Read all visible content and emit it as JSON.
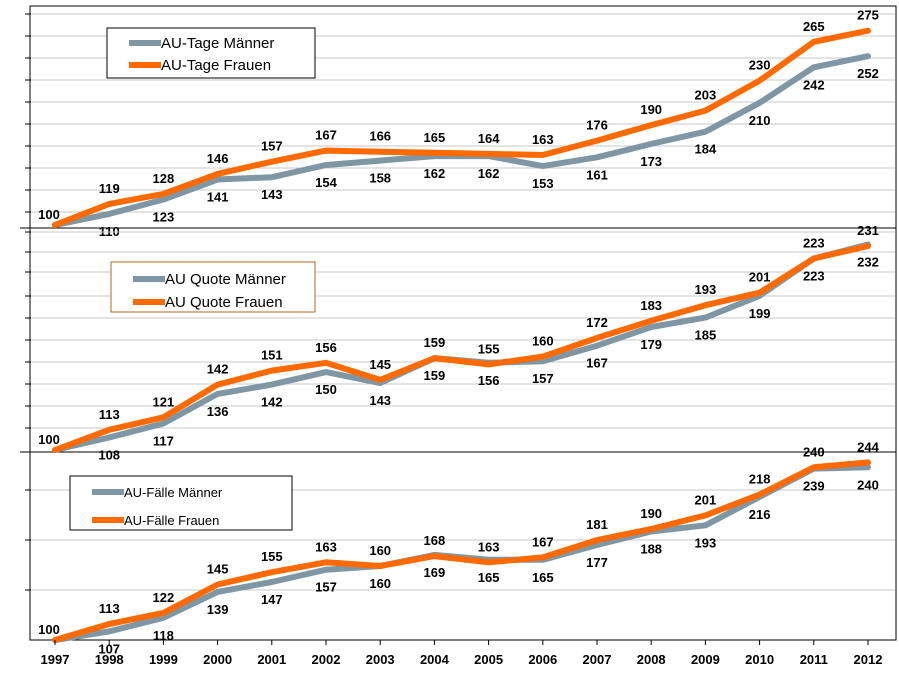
{
  "chart_data": {
    "type": "line",
    "categories": [
      "1997",
      "1998",
      "1999",
      "2000",
      "2001",
      "2002",
      "2003",
      "2004",
      "2005",
      "2006",
      "2007",
      "2008",
      "2009",
      "2010",
      "2011",
      "2012"
    ],
    "colors": {
      "men": "#7f97a5",
      "women": "#ff6a00"
    },
    "grid": true,
    "panels": [
      {
        "ylim": [
          100,
          290
        ],
        "legend_placement": "top-left",
        "series": [
          {
            "name": "AU-Tage Männer",
            "color_key": "men",
            "values": [
              100,
              110,
              123,
              141,
              143,
              154,
              158,
              162,
              162,
              153,
              161,
              173,
              184,
              210,
              242,
              252
            ],
            "labels": [
              "",
              "110",
              "123",
              "141",
              "143",
              "154",
              "158",
              "162",
              "162",
              "153",
              "161",
              "173",
              "184",
              "210",
              "242",
              "252"
            ]
          },
          {
            "name": "AU-Tage Frauen",
            "color_key": "women",
            "values": [
              100,
              119,
              128,
              146,
              157,
              167,
              166,
              165,
              164,
              163,
              176,
              190,
              203,
              230,
              265,
              275
            ],
            "labels": [
              "100",
              "119",
              "128",
              "146",
              "157",
              "167",
              "166",
              "165",
              "164",
              "163",
              "176",
              "190",
              "203",
              "230",
              "265",
              "275"
            ]
          }
        ]
      },
      {
        "ylim": [
          100,
          240
        ],
        "legend_placement": "top-left",
        "series": [
          {
            "name": "AU Quote Männer",
            "color_key": "men",
            "values": [
              100,
              108,
              117,
              136,
              142,
              150,
              143,
              159,
              156,
              157,
              167,
              179,
              185,
              199,
              223,
              232
            ],
            "labels": [
              "",
              "108",
              "117",
              "136",
              "142",
              "150",
              "143",
              "159",
              "156",
              "157",
              "167",
              "179",
              "185",
              "199",
              "223",
              "232"
            ]
          },
          {
            "name": "AU Quote Frauen",
            "color_key": "women",
            "values": [
              100,
              113,
              121,
              142,
              151,
              156,
              145,
              159,
              155,
              160,
              172,
              183,
              193,
              201,
              223,
              231
            ],
            "labels": [
              "100",
              "113",
              "121",
              "142",
              "151",
              "156",
              "145",
              "159",
              "155",
              "160",
              "172",
              "183",
              "193",
              "201",
              "223",
              "231"
            ]
          }
        ]
      },
      {
        "ylim": [
          100,
          250
        ],
        "legend_placement": "top-left",
        "series": [
          {
            "name": "AU-Fälle Männer",
            "color_key": "men",
            "values": [
              100,
              107,
              118,
              139,
              147,
              157,
              160,
              169,
              165,
              165,
              177,
              188,
              193,
              216,
              239,
              240
            ],
            "labels": [
              "",
              "107",
              "118",
              "139",
              "147",
              "157",
              "160",
              "169",
              "165",
              "165",
              "177",
              "188",
              "193",
              "216",
              "239",
              "240"
            ]
          },
          {
            "name": "AU-Fälle Frauen",
            "color_key": "women",
            "values": [
              100,
              113,
              122,
              145,
              155,
              163,
              160,
              168,
              163,
              167,
              181,
              190,
              201,
              218,
              240,
              244
            ],
            "labels": [
              "100",
              "113",
              "122",
              "145",
              "155",
              "163",
              "160",
              "168",
              "163",
              "167",
              "181",
              "190",
              "201",
              "218",
              "240",
              "244"
            ]
          }
        ]
      }
    ]
  }
}
